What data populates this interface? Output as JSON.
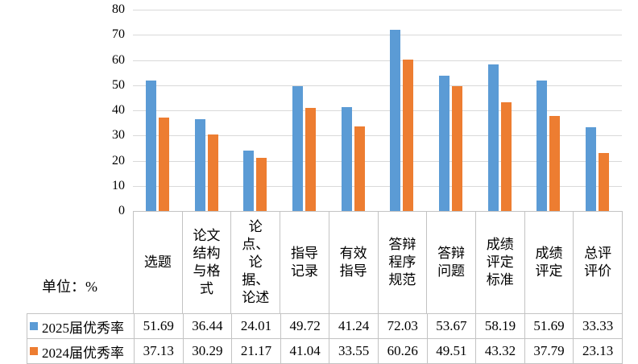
{
  "chart_data": {
    "type": "bar",
    "title": "",
    "unit_label": "单位：%",
    "categories": [
      "选题",
      "论文结构与格式",
      "论点、论据、论述",
      "指导记录",
      "有效指导",
      "答辩程序规范",
      "答辩问题",
      "成绩评定标准",
      "成绩评定",
      "总评评价"
    ],
    "series": [
      {
        "name": "2025届优秀率",
        "color": "#5B9BD5",
        "values": [
          51.69,
          36.44,
          24.01,
          49.72,
          41.24,
          72.03,
          53.67,
          58.19,
          51.69,
          33.33
        ]
      },
      {
        "name": "2024届优秀率",
        "color": "#ED7D31",
        "values": [
          37.13,
          30.29,
          21.17,
          41.04,
          33.55,
          60.26,
          49.51,
          43.32,
          37.79,
          23.13
        ]
      }
    ],
    "y_axis": {
      "min": 0,
      "max": 80,
      "step": 10,
      "tick_labels": [
        "0",
        "10",
        "20",
        "30",
        "40",
        "50",
        "60",
        "70",
        "80"
      ]
    },
    "grid": true,
    "legend_position": "left-of-data-table",
    "value_decimals": 2,
    "colors": {
      "gridline": "#D9D9D9",
      "table_border": "#C3C3C3",
      "text": "#000000"
    }
  }
}
